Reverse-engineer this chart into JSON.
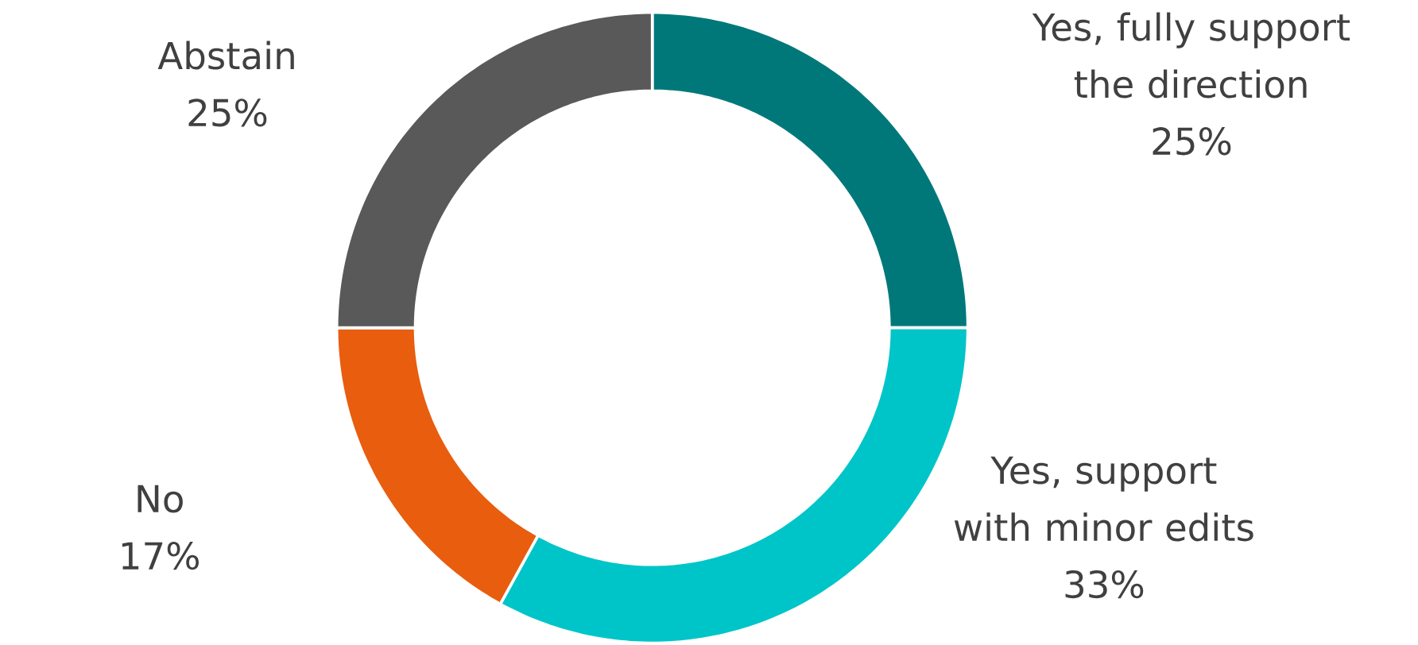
{
  "chart_data": {
    "type": "donut",
    "categories": [
      "Yes, fully support the direction",
      "Yes, support with minor edits",
      "No",
      "Abstain"
    ],
    "values": [
      25,
      33,
      17,
      25
    ],
    "colors": [
      "#00787a",
      "#00c5c8",
      "#e85d0e",
      "#595959"
    ],
    "value_labels": [
      "25%",
      "33%",
      "17%",
      "25%"
    ]
  }
}
